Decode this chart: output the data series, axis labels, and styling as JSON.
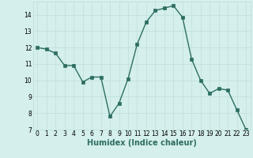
{
  "x": [
    0,
    1,
    2,
    3,
    4,
    5,
    6,
    7,
    8,
    9,
    10,
    11,
    12,
    13,
    14,
    15,
    16,
    17,
    18,
    19,
    20,
    21,
    22,
    23
  ],
  "y": [
    12.0,
    11.9,
    11.65,
    10.9,
    10.9,
    9.9,
    10.2,
    10.2,
    7.8,
    8.6,
    10.1,
    12.2,
    13.55,
    14.25,
    14.4,
    14.55,
    13.85,
    11.3,
    10.0,
    9.2,
    9.5,
    9.4,
    8.2,
    7.0
  ],
  "line_color": "#2e6e62",
  "marker_color": "#2e6e62",
  "bg_color": "#d4efec",
  "grid_color": "#c0deda",
  "xlabel": "Humidex (Indice chaleur)",
  "ylim": [
    7,
    14.8
  ],
  "xlim": [
    -0.5,
    23.5
  ],
  "yticks": [
    7,
    8,
    9,
    10,
    11,
    12,
    13,
    14
  ],
  "xticks": [
    0,
    1,
    2,
    3,
    4,
    5,
    6,
    7,
    8,
    9,
    10,
    11,
    12,
    13,
    14,
    15,
    16,
    17,
    18,
    19,
    20,
    21,
    22,
    23
  ],
  "tick_fontsize": 5.5,
  "xlabel_fontsize": 7,
  "marker_size": 2.2,
  "line_width": 1.0
}
